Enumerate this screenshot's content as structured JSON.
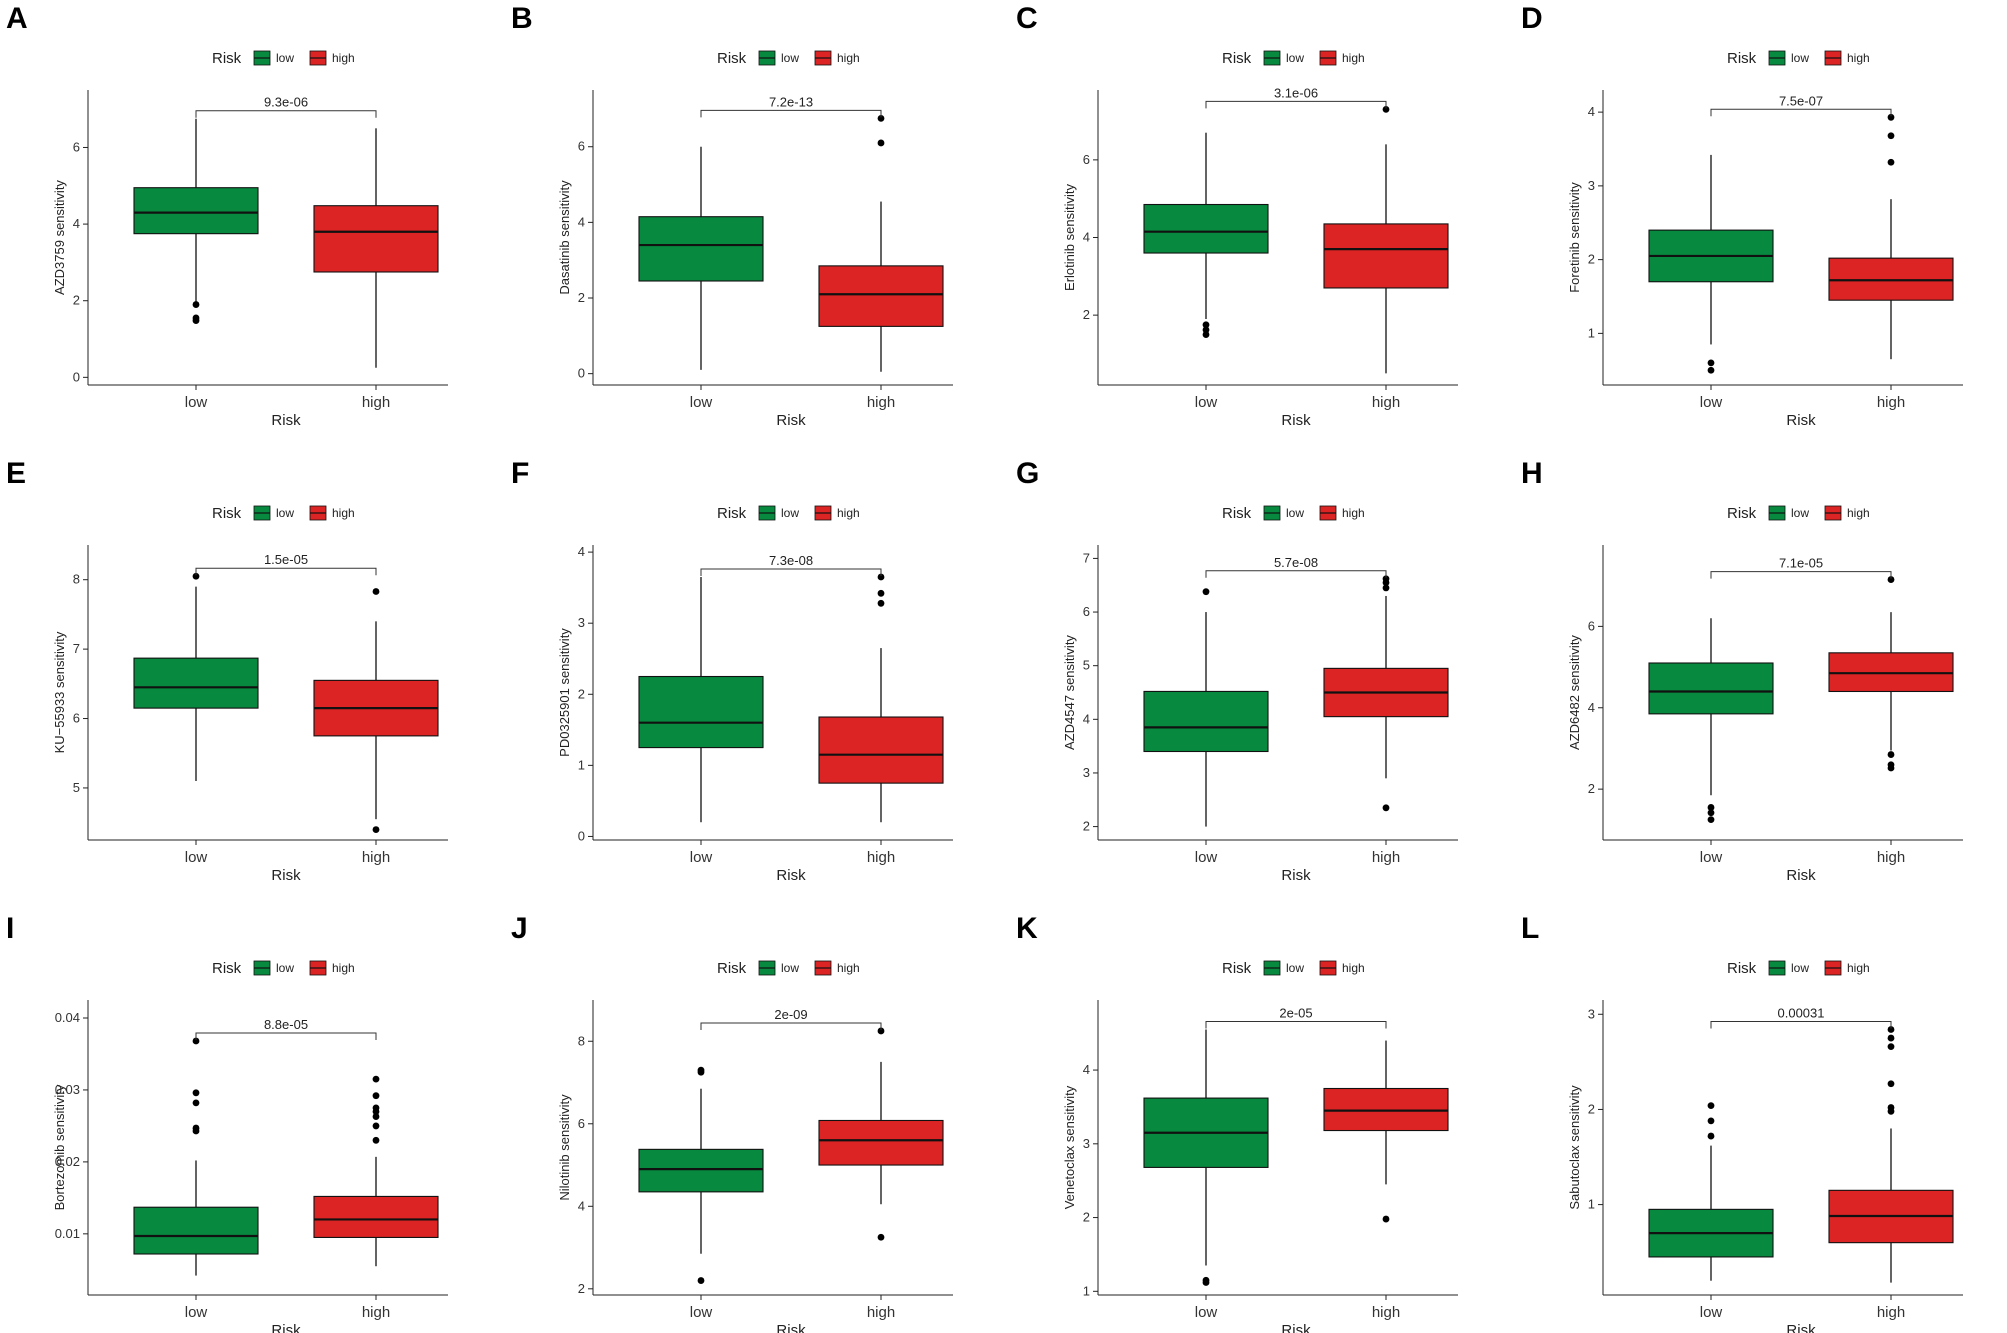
{
  "colors": {
    "low": "#078a3f",
    "high": "#dc2424",
    "point": "#000000"
  },
  "legend": {
    "title": "Risk",
    "low": "low",
    "high": "high"
  },
  "chart_data": [
    {
      "letter": "A",
      "type": "boxplot",
      "ylabel": "AZD3759 sensitivity",
      "xlabel": "Risk",
      "categories": [
        "low",
        "high"
      ],
      "pvalue": "9.3e-06",
      "ylim": [
        -0.2,
        7.5
      ],
      "yticks": [
        0,
        2,
        4,
        6
      ],
      "boxes": [
        {
          "group": "low",
          "min": 1.95,
          "q1": 3.75,
          "median": 4.3,
          "q3": 4.95,
          "max": 6.75,
          "outliers": [
            1.9,
            1.55,
            1.48
          ]
        },
        {
          "group": "high",
          "min": 0.25,
          "q1": 2.75,
          "median": 3.8,
          "q3": 4.48,
          "max": 6.5,
          "outliers": []
        }
      ]
    },
    {
      "letter": "B",
      "type": "boxplot",
      "ylabel": "Dasatinib sensitivity",
      "xlabel": "Risk",
      "categories": [
        "low",
        "high"
      ],
      "pvalue": "7.2e-13",
      "ylim": [
        -0.3,
        7.5
      ],
      "yticks": [
        0,
        2,
        4,
        6
      ],
      "boxes": [
        {
          "group": "low",
          "min": 0.1,
          "q1": 2.45,
          "median": 3.4,
          "q3": 4.15,
          "max": 6.0,
          "outliers": []
        },
        {
          "group": "high",
          "min": 0.05,
          "q1": 1.25,
          "median": 2.1,
          "q3": 2.85,
          "max": 4.55,
          "outliers": [
            6.1,
            6.75
          ]
        }
      ]
    },
    {
      "letter": "C",
      "type": "boxplot",
      "ylabel": "Erlotinib sensitivity",
      "xlabel": "Risk",
      "categories": [
        "low",
        "high"
      ],
      "pvalue": "3.1e-06",
      "ylim": [
        0.2,
        7.8
      ],
      "yticks": [
        2,
        4,
        6
      ],
      "boxes": [
        {
          "group": "low",
          "min": 1.9,
          "q1": 3.6,
          "median": 4.15,
          "q3": 4.85,
          "max": 6.7,
          "outliers": [
            1.75,
            1.62,
            1.5
          ]
        },
        {
          "group": "high",
          "min": 0.5,
          "q1": 2.7,
          "median": 3.7,
          "q3": 4.35,
          "max": 6.4,
          "outliers": [
            7.3
          ]
        }
      ]
    },
    {
      "letter": "D",
      "type": "boxplot",
      "ylabel": "Foretinib sensitivity",
      "xlabel": "Risk",
      "categories": [
        "low",
        "high"
      ],
      "pvalue": "7.5e-07",
      "ylim": [
        0.3,
        4.3
      ],
      "yticks": [
        1,
        2,
        3,
        4
      ],
      "boxes": [
        {
          "group": "low",
          "min": 0.85,
          "q1": 1.7,
          "median": 2.05,
          "q3": 2.4,
          "max": 3.42,
          "outliers": [
            0.6,
            0.5
          ]
        },
        {
          "group": "high",
          "min": 0.65,
          "q1": 1.45,
          "median": 1.72,
          "q3": 2.02,
          "max": 2.82,
          "outliers": [
            3.32,
            3.68,
            3.93
          ]
        }
      ]
    },
    {
      "letter": "E",
      "type": "boxplot",
      "ylabel": "KU−55933 sensitivity",
      "xlabel": "Risk",
      "categories": [
        "low",
        "high"
      ],
      "pvalue": "1.5e-05",
      "ylim": [
        4.25,
        8.5
      ],
      "yticks": [
        5,
        6,
        7,
        8
      ],
      "boxes": [
        {
          "group": "low",
          "min": 5.1,
          "q1": 6.15,
          "median": 6.45,
          "q3": 6.87,
          "max": 7.9,
          "outliers": [
            8.05
          ]
        },
        {
          "group": "high",
          "min": 4.55,
          "q1": 5.75,
          "median": 6.15,
          "q3": 6.55,
          "max": 7.4,
          "outliers": [
            7.83,
            4.4
          ]
        }
      ]
    },
    {
      "letter": "F",
      "type": "boxplot",
      "ylabel": "PD0325901 sensitivity",
      "xlabel": "Risk",
      "categories": [
        "low",
        "high"
      ],
      "pvalue": "7.3e-08",
      "ylim": [
        -0.05,
        4.1
      ],
      "yticks": [
        0,
        1,
        2,
        3,
        4
      ],
      "boxes": [
        {
          "group": "low",
          "min": 0.2,
          "q1": 1.25,
          "median": 1.6,
          "q3": 2.25,
          "max": 3.65,
          "outliers": []
        },
        {
          "group": "high",
          "min": 0.2,
          "q1": 0.75,
          "median": 1.15,
          "q3": 1.68,
          "max": 2.65,
          "outliers": [
            3.28,
            3.42,
            3.65
          ]
        }
      ]
    },
    {
      "letter": "G",
      "type": "boxplot",
      "ylabel": "AZD4547 sensitivity",
      "xlabel": "Risk",
      "categories": [
        "low",
        "high"
      ],
      "pvalue": "5.7e-08",
      "ylim": [
        1.75,
        7.25
      ],
      "yticks": [
        2,
        3,
        4,
        5,
        6,
        7
      ],
      "boxes": [
        {
          "group": "low",
          "min": 2.0,
          "q1": 3.4,
          "median": 3.85,
          "q3": 4.52,
          "max": 6.0,
          "outliers": [
            6.38
          ]
        },
        {
          "group": "high",
          "min": 2.9,
          "q1": 4.05,
          "median": 4.5,
          "q3": 4.95,
          "max": 6.3,
          "outliers": [
            6.45,
            6.55,
            6.62,
            2.35
          ]
        }
      ]
    },
    {
      "letter": "H",
      "type": "boxplot",
      "ylabel": "AZD6482 sensitivity",
      "xlabel": "Risk",
      "categories": [
        "low",
        "high"
      ],
      "pvalue": "7.1e-05",
      "ylim": [
        0.75,
        8.0
      ],
      "yticks": [
        2,
        4,
        6
      ],
      "boxes": [
        {
          "group": "low",
          "min": 1.85,
          "q1": 3.85,
          "median": 4.4,
          "q3": 5.1,
          "max": 6.2,
          "outliers": [
            1.55,
            1.42,
            1.25
          ]
        },
        {
          "group": "high",
          "min": 2.95,
          "q1": 4.4,
          "median": 4.85,
          "q3": 5.35,
          "max": 6.35,
          "outliers": [
            7.15,
            2.85,
            2.6,
            2.52
          ]
        }
      ]
    },
    {
      "letter": "I",
      "type": "boxplot",
      "ylabel": "Bortezomib sensitivity",
      "xlabel": "Risk",
      "categories": [
        "low",
        "high"
      ],
      "pvalue": "8.8e-05",
      "ylim": [
        0.0015,
        0.0425
      ],
      "yticks": [
        0.01,
        0.02,
        0.03,
        0.04
      ],
      "boxes": [
        {
          "group": "low",
          "min": 0.0042,
          "q1": 0.0072,
          "median": 0.0097,
          "q3": 0.0137,
          "max": 0.0202,
          "outliers": [
            0.0243,
            0.0247,
            0.0282,
            0.0296,
            0.0368
          ]
        },
        {
          "group": "high",
          "min": 0.0055,
          "q1": 0.0095,
          "median": 0.012,
          "q3": 0.0152,
          "max": 0.0207,
          "outliers": [
            0.023,
            0.025,
            0.0263,
            0.027,
            0.0275,
            0.0292,
            0.0315
          ]
        }
      ]
    },
    {
      "letter": "J",
      "type": "boxplot",
      "ylabel": "Nilotinib sensitivity",
      "xlabel": "Risk",
      "categories": [
        "low",
        "high"
      ],
      "pvalue": "2e-09",
      "ylim": [
        1.85,
        9.0
      ],
      "yticks": [
        2,
        4,
        6,
        8
      ],
      "boxes": [
        {
          "group": "low",
          "min": 2.85,
          "q1": 4.35,
          "median": 4.9,
          "q3": 5.38,
          "max": 6.85,
          "outliers": [
            7.25,
            7.3,
            2.2
          ]
        },
        {
          "group": "high",
          "min": 4.05,
          "q1": 5.0,
          "median": 5.6,
          "q3": 6.08,
          "max": 7.5,
          "outliers": [
            8.25,
            3.25
          ]
        }
      ]
    },
    {
      "letter": "K",
      "type": "boxplot",
      "ylabel": "Venetoclax sensitivity",
      "xlabel": "Risk",
      "categories": [
        "low",
        "high"
      ],
      "pvalue": "2e-05",
      "ylim": [
        0.95,
        4.95
      ],
      "yticks": [
        1,
        2,
        3,
        4
      ],
      "boxes": [
        {
          "group": "low",
          "min": 1.35,
          "q1": 2.68,
          "median": 3.15,
          "q3": 3.62,
          "max": 4.55,
          "outliers": [
            1.15,
            1.12
          ]
        },
        {
          "group": "high",
          "min": 2.45,
          "q1": 3.18,
          "median": 3.45,
          "q3": 3.75,
          "max": 4.4,
          "outliers": [
            1.98
          ]
        }
      ]
    },
    {
      "letter": "L",
      "type": "boxplot",
      "ylabel": "Sabutoclax sensitivity",
      "xlabel": "Risk",
      "categories": [
        "low",
        "high"
      ],
      "pvalue": "0.00031",
      "ylim": [
        0.05,
        3.15
      ],
      "yticks": [
        1,
        2,
        3
      ],
      "boxes": [
        {
          "group": "low",
          "min": 0.2,
          "q1": 0.45,
          "median": 0.7,
          "q3": 0.95,
          "max": 1.62,
          "outliers": [
            1.72,
            1.88,
            2.04
          ]
        },
        {
          "group": "high",
          "min": 0.18,
          "q1": 0.6,
          "median": 0.88,
          "q3": 1.15,
          "max": 1.8,
          "outliers": [
            1.98,
            2.02,
            2.27,
            2.66,
            2.75,
            2.84
          ]
        }
      ]
    }
  ]
}
